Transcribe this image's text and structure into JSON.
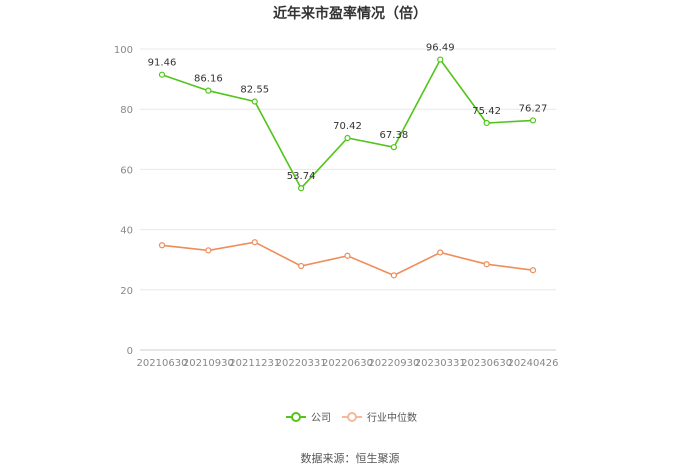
{
  "chart_data": {
    "type": "line",
    "title": "近年来市盈率情况（倍）",
    "categories": [
      "20210630",
      "20210930",
      "20211231",
      "20220331",
      "20220630",
      "20220930",
      "20230331",
      "20230630",
      "20240426"
    ],
    "series": [
      {
        "name": "公司",
        "color": "#52c41a",
        "values": [
          91.46,
          86.16,
          82.55,
          53.74,
          70.42,
          67.38,
          96.49,
          75.42,
          76.27
        ],
        "labels": [
          "91.46",
          "86.16",
          "82.55",
          "53.74",
          "70.42",
          "67.38",
          "96.49",
          "75.42",
          "76.27"
        ]
      },
      {
        "name": "行业中位数",
        "color": "#f08c5a",
        "values": [
          34.8,
          33.1,
          35.8,
          27.9,
          31.3,
          24.8,
          32.4,
          28.5,
          26.5
        ]
      }
    ],
    "yticks": [
      "0",
      "20",
      "40",
      "60",
      "80",
      "100"
    ],
    "ylim": [
      0,
      100
    ],
    "grid": true,
    "legend": "bottom-center"
  },
  "source": "数据来源：恒生聚源"
}
